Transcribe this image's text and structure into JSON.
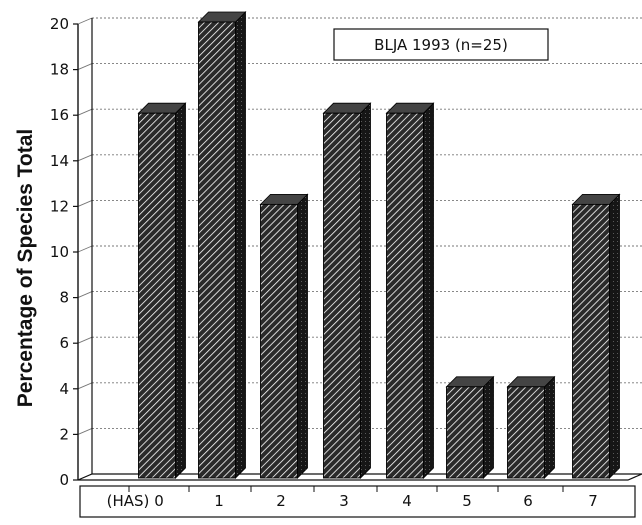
{
  "chart_data": {
    "type": "bar",
    "ylabel": "Percentage of Species Total",
    "legend": "BLJA 1993 (n=25)",
    "legend_position": "top-right",
    "x_prefix_label": "(HAS)",
    "categories": [
      "0",
      "1",
      "2",
      "3",
      "4",
      "5",
      "6",
      "7"
    ],
    "values": [
      16,
      20,
      12,
      16,
      16,
      4,
      4,
      12
    ],
    "ylim": [
      0,
      20
    ],
    "yticks": [
      "0",
      "2",
      "4",
      "6",
      "8",
      "10",
      "12",
      "14",
      "16",
      "18",
      "20"
    ],
    "grid": true,
    "style": "3d-hatched",
    "colors": {
      "bar_front": "#2a2a2a",
      "bar_hatch": "#ffffff",
      "bar_side": "#111111",
      "bar_top": "#444444",
      "grid": "#777777",
      "axis": "#111111"
    }
  }
}
